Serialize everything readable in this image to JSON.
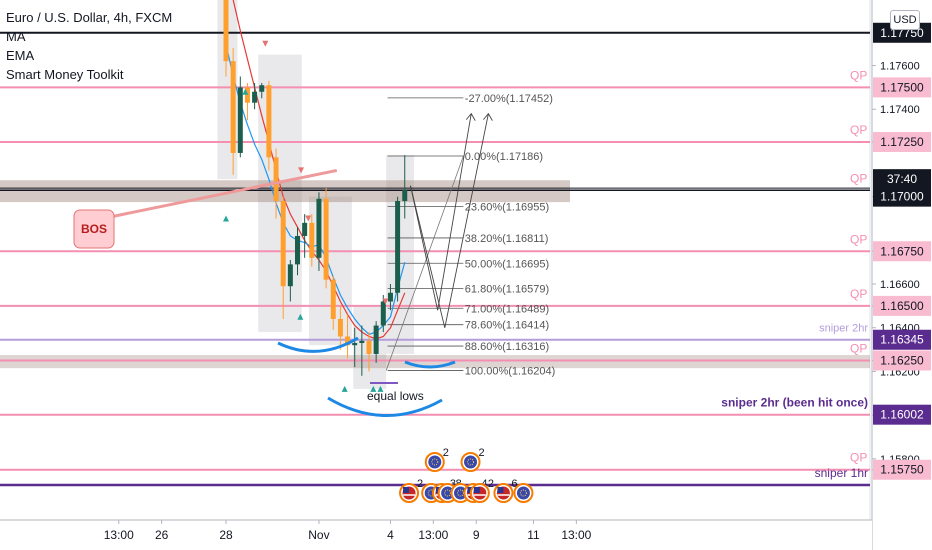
{
  "header": {
    "title": "Euro / U.S. Dollar, 4h, FXCM",
    "indicators": [
      "MA",
      "EMA",
      "Smart Money Toolkit"
    ],
    "currency": "USD"
  },
  "chart_data": {
    "type": "candlestick",
    "symbol": "EURUSD",
    "timeframe": "4h",
    "ylim": [
      1.1552,
      1.179
    ],
    "price_ticks": [
      1.176,
      1.174,
      1.1725,
      1.17,
      1.1675,
      1.166,
      1.165,
      1.164,
      1.1625,
      1.162,
      1.16,
      1.158,
      1.1575
    ],
    "time_labels": [
      {
        "label": "13:00",
        "i": -15
      },
      {
        "label": "26",
        "i": -9
      },
      {
        "label": "28",
        "i": 0
      },
      {
        "label": "Nov",
        "i": 13
      },
      {
        "label": "4",
        "i": 23
      },
      {
        "label": "13:00",
        "i": 29
      },
      {
        "label": "9",
        "i": 35
      },
      {
        "label": "11",
        "i": 43
      },
      {
        "label": "13:00",
        "i": 49
      }
    ],
    "candles": [
      {
        "o": 1.181,
        "h": 1.1812,
        "l": 1.1755,
        "c": 1.1762
      },
      {
        "o": 1.1762,
        "h": 1.1768,
        "l": 1.171,
        "c": 1.172
      },
      {
        "o": 1.172,
        "h": 1.1755,
        "l": 1.1718,
        "c": 1.175
      },
      {
        "o": 1.175,
        "h": 1.1752,
        "l": 1.1735,
        "c": 1.1743
      },
      {
        "o": 1.1743,
        "h": 1.1752,
        "l": 1.174,
        "c": 1.1748
      },
      {
        "o": 1.1748,
        "h": 1.1752,
        "l": 1.1745,
        "c": 1.1751
      },
      {
        "o": 1.1751,
        "h": 1.1753,
        "l": 1.1712,
        "c": 1.1718
      },
      {
        "o": 1.1718,
        "h": 1.1722,
        "l": 1.169,
        "c": 1.1698
      },
      {
        "o": 1.1698,
        "h": 1.17,
        "l": 1.1644,
        "c": 1.1659
      },
      {
        "o": 1.1659,
        "h": 1.1671,
        "l": 1.1652,
        "c": 1.1669
      },
      {
        "o": 1.1669,
        "h": 1.1686,
        "l": 1.1664,
        "c": 1.1682
      },
      {
        "o": 1.1682,
        "h": 1.1692,
        "l": 1.1672,
        "c": 1.1688
      },
      {
        "o": 1.1688,
        "h": 1.1692,
        "l": 1.1668,
        "c": 1.1672
      },
      {
        "o": 1.1672,
        "h": 1.1702,
        "l": 1.1666,
        "c": 1.1699
      },
      {
        "o": 1.1699,
        "h": 1.1704,
        "l": 1.1658,
        "c": 1.1662
      },
      {
        "o": 1.1662,
        "h": 1.1664,
        "l": 1.1639,
        "c": 1.1644
      },
      {
        "o": 1.1644,
        "h": 1.165,
        "l": 1.163,
        "c": 1.1636
      },
      {
        "o": 1.1636,
        "h": 1.1646,
        "l": 1.1626,
        "c": 1.1632
      },
      {
        "o": 1.1632,
        "h": 1.164,
        "l": 1.1622,
        "c": 1.1633
      },
      {
        "o": 1.1633,
        "h": 1.1641,
        "l": 1.1618,
        "c": 1.1634
      },
      {
        "o": 1.1634,
        "h": 1.1638,
        "l": 1.162,
        "c": 1.1628
      },
      {
        "o": 1.1628,
        "h": 1.1643,
        "l": 1.1624,
        "c": 1.1641
      },
      {
        "o": 1.1641,
        "h": 1.1655,
        "l": 1.1638,
        "c": 1.1652
      },
      {
        "o": 1.1652,
        "h": 1.166,
        "l": 1.1648,
        "c": 1.1656
      },
      {
        "o": 1.1656,
        "h": 1.17,
        "l": 1.1652,
        "c": 1.1698
      },
      {
        "o": 1.1698,
        "h": 1.1719,
        "l": 1.169,
        "c": 1.1703
      }
    ],
    "ma": [
      1.1802,
      1.179,
      1.1776,
      1.1763,
      1.175,
      1.1737,
      1.1725,
      1.1712,
      1.17,
      1.1692,
      1.1686,
      1.168,
      1.1675,
      1.1671,
      1.1666,
      1.1659,
      1.1652,
      1.1646,
      1.1641,
      1.1638,
      1.1636,
      1.1635,
      1.1636,
      1.164,
      1.1648,
      1.1656
    ],
    "ema": [
      1.177,
      1.1755,
      1.1743,
      1.1733,
      1.1724,
      1.1717,
      1.1708,
      1.1697,
      1.1688,
      1.1682,
      1.168,
      1.1679,
      1.1677,
      1.1678,
      1.1672,
      1.1663,
      1.1655,
      1.1649,
      1.1644,
      1.164,
      1.1637,
      1.1638,
      1.1641,
      1.1645,
      1.1658,
      1.167
    ],
    "levels": [
      {
        "price": 1.1775,
        "label": "1.17750",
        "tag": "",
        "color": "#131722",
        "bg": "#131722",
        "fg": "#ffffff",
        "width": 2
      },
      {
        "price": 1.175,
        "label": "1.17500",
        "tag": "QP",
        "color": "#f48fb1",
        "bg": "#f8bbd0",
        "fg": "#131722",
        "width": 2
      },
      {
        "price": 1.1725,
        "label": "1.17250",
        "tag": "QP",
        "color": "#f48fb1",
        "bg": "#f8bbd0",
        "fg": "#131722",
        "width": 2
      },
      {
        "price": 1.17029,
        "label": "1.17029",
        "tag": "QP",
        "color": "#131722",
        "bg": "#131722",
        "fg": "#ffffff",
        "width": 1.5
      },
      {
        "price": 1.1675,
        "label": "1.16750",
        "tag": "QP",
        "color": "#f48fb1",
        "bg": "#f8bbd0",
        "fg": "#131722",
        "width": 2
      },
      {
        "price": 1.165,
        "label": "1.16500",
        "tag": "QP",
        "color": "#f48fb1",
        "bg": "#f8bbd0",
        "fg": "#131722",
        "width": 2
      },
      {
        "price": 1.16345,
        "label": "1.16345",
        "tag": "sniper 2hr",
        "color": "#b39ddb",
        "bg": "#5b2c8f",
        "fg": "#ffffff",
        "width": 2
      },
      {
        "price": 1.1625,
        "label": "1.16250",
        "tag": "QP",
        "color": "#f48fb1",
        "bg": "#f8bbd0",
        "fg": "#131722",
        "width": 2
      },
      {
        "price": 1.16002,
        "label": "1.16002",
        "tag": "sniper 2hr (been hit once)",
        "color": "#f48fb1",
        "bg": "#5b2c8f",
        "fg": "#ffffff",
        "width": 2
      },
      {
        "price": 1.1575,
        "label": "1.15750",
        "tag": "QP",
        "color": "#f48fb1",
        "bg": "#f8bbd0",
        "fg": "#131722",
        "width": 2
      }
    ],
    "extra_lines": [
      {
        "price": 1.17039,
        "color": "#131722",
        "width": 1
      },
      {
        "price": 1.1568,
        "color": "#5b2c8f",
        "width": 2.5
      }
    ],
    "price_badges": [
      {
        "price": 1.17,
        "label": "1.17000",
        "bg": "#131722",
        "fg": "#ffffff"
      },
      {
        "price": 1.1708,
        "label": "37:40",
        "bg": "#131722",
        "fg": "#ffffff"
      }
    ],
    "sniper_1hr_label": "sniper 1hr",
    "fib": [
      {
        "level": "-27.00%",
        "price": 1.17452
      },
      {
        "level": "0.00%",
        "price": 1.17186
      },
      {
        "level": "23.60%",
        "price": 1.16955
      },
      {
        "level": "38.20%",
        "price": 1.16811
      },
      {
        "level": "50.00%",
        "price": 1.16695
      },
      {
        "level": "61.80%",
        "price": 1.16579
      },
      {
        "level": "71.00%",
        "price": 1.16489
      },
      {
        "level": "78.60%",
        "price": 1.16414
      },
      {
        "level": "88.60%",
        "price": 1.16316
      },
      {
        "level": "100.00%",
        "price": 1.16204
      }
    ],
    "annotations": {
      "bos": "BOS",
      "equal_lows": "equal lows"
    },
    "events": [
      {
        "i": 25.6,
        "flag": "us",
        "count": "2"
      },
      {
        "i": 28.7,
        "flag": "eu",
        "count": ""
      },
      {
        "i": 30.2,
        "flag": "us",
        "count": "3"
      },
      {
        "i": 31.0,
        "flag": "",
        "count": "8"
      },
      {
        "i": 32.8,
        "flag": "eu",
        "count": ""
      },
      {
        "i": 34.6,
        "flag": "us",
        "count": "4"
      },
      {
        "i": 35.5,
        "flag": "us",
        "count": "2"
      },
      {
        "i": 38.8,
        "flag": "us",
        "count": "6"
      },
      {
        "i": 41.6,
        "flag": "eu",
        "count": ""
      },
      {
        "i": 29.2,
        "flag": "eu",
        "count": "2",
        "high": true
      },
      {
        "i": 34.2,
        "flag": "eu",
        "count": "2",
        "high": true
      }
    ]
  }
}
